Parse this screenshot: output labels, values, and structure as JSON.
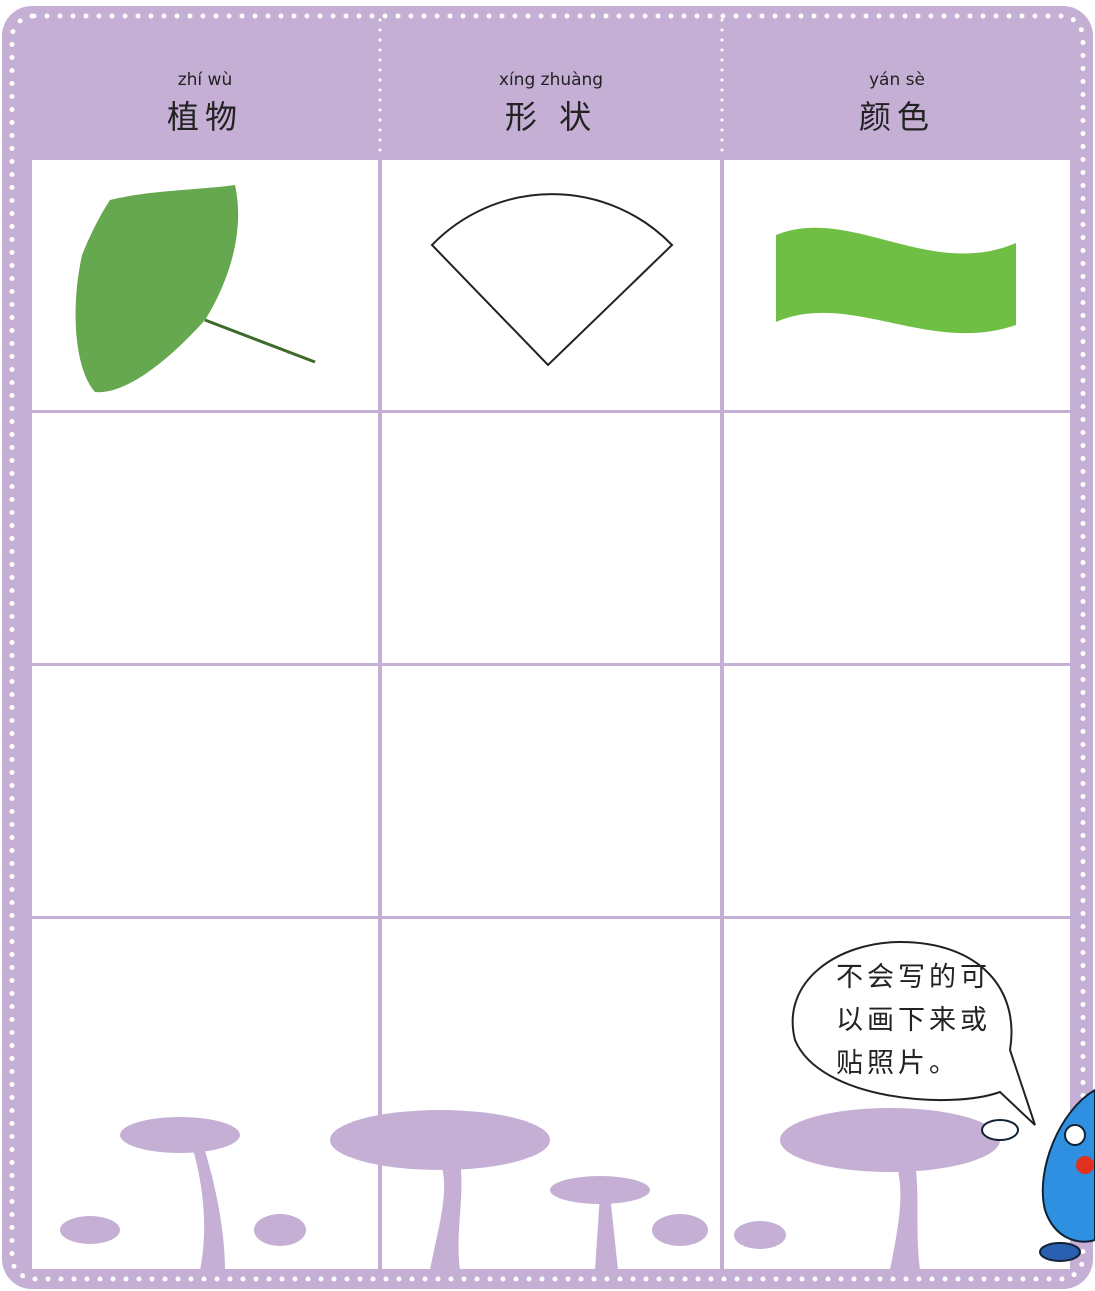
{
  "table": {
    "columns": [
      {
        "pinyin": "zhí wù",
        "label": "植物"
      },
      {
        "pinyin": "xíng zhuàng",
        "label": "形 状"
      },
      {
        "pinyin": "yán sè",
        "label": "颜色"
      }
    ]
  },
  "bubble": {
    "lines": [
      "不会写的可",
      "以画下来或",
      "贴照片。"
    ]
  }
}
